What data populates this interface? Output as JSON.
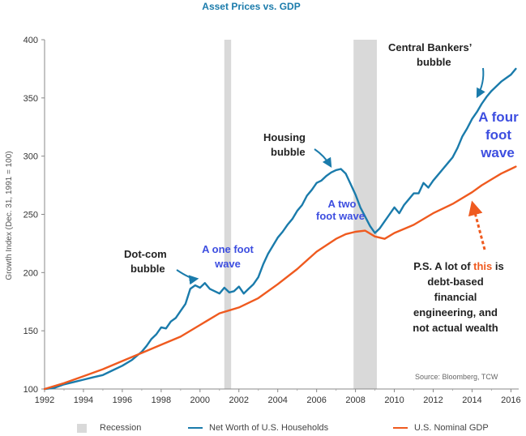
{
  "chart_data": {
    "type": "line",
    "title": "Asset Prices vs. GDP",
    "ylabel": "Growth Index (Dec. 31, 1991 = 100)",
    "xlabel": "",
    "xlim": [
      1992,
      2016.4
    ],
    "ylim": [
      100,
      400
    ],
    "x_ticks": [
      "1992",
      "1994",
      "1996",
      "1998",
      "2000",
      "2002",
      "2004",
      "2006",
      "2008",
      "2010",
      "2012",
      "2014",
      "2016"
    ],
    "y_ticks": [
      "100",
      "150",
      "200",
      "250",
      "300",
      "350",
      "400"
    ],
    "grid": false,
    "legend_position": "bottom",
    "source": "Source: Bloomberg, TCW",
    "recessions": [
      [
        2001.25,
        2001.6
      ],
      [
        2007.9,
        2009.1
      ]
    ],
    "series": [
      {
        "name": "Net Worth of U.S. Households",
        "color": "#1a7bab",
        "x": [
          1992.0,
          1992.5,
          1993.0,
          1993.5,
          1994.0,
          1994.5,
          1995.0,
          1995.5,
          1996.0,
          1996.5,
          1997.0,
          1997.25,
          1997.5,
          1997.75,
          1998.0,
          1998.25,
          1998.5,
          1998.75,
          1999.0,
          1999.25,
          1999.5,
          1999.75,
          2000.0,
          2000.25,
          2000.5,
          2000.75,
          2001.0,
          2001.25,
          2001.5,
          2001.75,
          2002.0,
          2002.25,
          2002.5,
          2002.75,
          2003.0,
          2003.25,
          2003.5,
          2003.75,
          2004.0,
          2004.25,
          2004.5,
          2004.75,
          2005.0,
          2005.25,
          2005.5,
          2005.75,
          2006.0,
          2006.25,
          2006.5,
          2006.75,
          2007.0,
          2007.25,
          2007.5,
          2007.75,
          2008.0,
          2008.25,
          2008.5,
          2008.75,
          2009.0,
          2009.25,
          2009.5,
          2009.75,
          2010.0,
          2010.25,
          2010.5,
          2010.75,
          2011.0,
          2011.25,
          2011.5,
          2011.75,
          2012.0,
          2012.25,
          2012.5,
          2012.75,
          2013.0,
          2013.25,
          2013.5,
          2013.75,
          2014.0,
          2014.25,
          2014.5,
          2014.75,
          2015.0,
          2015.25,
          2015.5,
          2015.75,
          2016.0,
          2016.25
        ],
        "values": [
          100,
          101,
          104,
          106,
          108,
          110,
          112,
          116,
          120,
          125,
          132,
          137,
          143,
          147,
          153,
          152,
          158,
          161,
          167,
          173,
          186,
          189,
          187,
          191,
          186,
          184,
          182,
          187,
          183,
          184,
          188,
          182,
          186,
          190,
          196,
          207,
          216,
          223,
          230,
          235,
          241,
          246,
          253,
          258,
          266,
          271,
          277,
          279,
          283,
          286,
          288,
          289,
          285,
          276,
          267,
          256,
          248,
          240,
          234,
          238,
          244,
          250,
          256,
          251,
          258,
          263,
          268,
          268,
          277,
          273,
          279,
          284,
          289,
          294,
          299,
          307,
          317,
          324,
          332,
          338,
          345,
          351,
          356,
          360,
          364,
          367,
          370,
          375
        ]
      },
      {
        "name": "U.S. Nominal GDP",
        "color": "#ef5a1f",
        "x": [
          1992.0,
          1993.0,
          1994.0,
          1995.0,
          1996.0,
          1997.0,
          1998.0,
          1999.0,
          2000.0,
          2001.0,
          2002.0,
          2003.0,
          2004.0,
          2005.0,
          2006.0,
          2007.0,
          2007.5,
          2008.0,
          2008.5,
          2009.0,
          2009.5,
          2010.0,
          2011.0,
          2012.0,
          2013.0,
          2014.0,
          2014.5,
          2015.0,
          2015.5,
          2016.0,
          2016.25
        ],
        "values": [
          100,
          105,
          111,
          117,
          124,
          131,
          138,
          145,
          155,
          165,
          170,
          178,
          190,
          203,
          218,
          229,
          233,
          235,
          236,
          231,
          229,
          234,
          241,
          251,
          259,
          269,
          275,
          280,
          285,
          289,
          291
        ]
      }
    ],
    "annotations": [
      {
        "key": "dotcom_l1",
        "text": "Dot-com"
      },
      {
        "key": "dotcom_l2",
        "text": "bubble"
      },
      {
        "key": "housing_l1",
        "text": "Housing"
      },
      {
        "key": "housing_l2",
        "text": "bubble"
      },
      {
        "key": "cb_l1",
        "text": "Central Bankers’"
      },
      {
        "key": "cb_l2",
        "text": "bubble"
      },
      {
        "key": "one_l1",
        "text": "A one foot"
      },
      {
        "key": "one_l2",
        "text": "wave"
      },
      {
        "key": "two_l1",
        "text": "A two"
      },
      {
        "key": "two_l2",
        "text": "foot wave"
      },
      {
        "key": "four_l1",
        "text": "A four"
      },
      {
        "key": "four_l2",
        "text": "foot"
      },
      {
        "key": "four_l3",
        "text": "wave"
      },
      {
        "key": "ps_l1a",
        "text": "P.S. A lot of "
      },
      {
        "key": "ps_l1b",
        "text": "this"
      },
      {
        "key": "ps_l1c",
        "text": " is"
      },
      {
        "key": "ps_l2",
        "text": "debt-based"
      },
      {
        "key": "ps_l3",
        "text": "financial"
      },
      {
        "key": "ps_l4",
        "text": "engineering, and"
      },
      {
        "key": "ps_l5",
        "text": "not actual wealth"
      }
    ]
  },
  "legend": {
    "recession": "Recession",
    "households": "Net Worth of U.S. Households",
    "gdp": "U.S. Nominal GDP"
  },
  "colors": {
    "households": "#1a7bab",
    "gdp": "#ef5a1f",
    "recession": "#d9d9d9",
    "wave_text": "#3d4ee0",
    "title": "#1a7bab"
  }
}
